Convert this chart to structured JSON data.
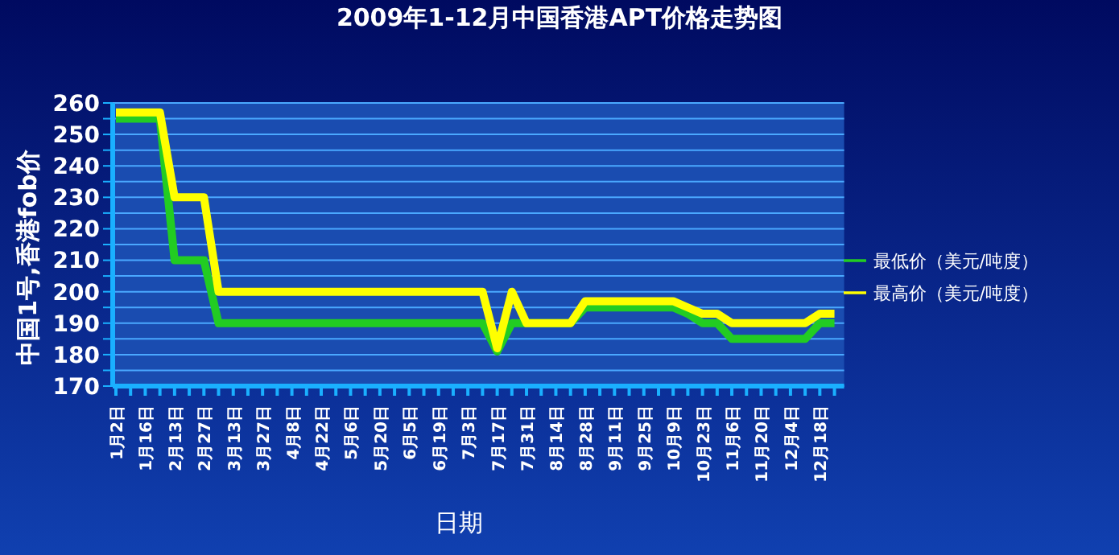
{
  "chart_data": {
    "type": "line",
    "title": "2009年1-12月中国香港APT价格走势图",
    "xlabel": "日期",
    "ylabel": "中国1号,香港fob价",
    "categories": [
      "1月2日",
      null,
      "1月16日",
      null,
      "2月13日",
      null,
      "2月27日",
      null,
      "3月13日",
      null,
      "3月27日",
      null,
      "4月8日",
      null,
      "4月22日",
      null,
      "5月6日",
      null,
      "5月20日",
      null,
      "6月5日",
      null,
      "6月19日",
      null,
      "7月3日",
      null,
      "7月17日",
      null,
      "7月31日",
      null,
      "8月14日",
      null,
      "8月28日",
      null,
      "9月11日",
      null,
      "9月25日",
      null,
      "10月9日",
      null,
      "10月23日",
      null,
      "11月6日",
      null,
      "11月20日",
      null,
      "12月4日",
      null,
      "12月18日",
      null
    ],
    "series": [
      {
        "name": "最低价（美元/吨度）",
        "color": "#22cc22",
        "values": [
          255,
          255,
          255,
          255,
          210,
          210,
          210,
          190,
          190,
          190,
          190,
          190,
          190,
          190,
          190,
          190,
          190,
          190,
          190,
          190,
          190,
          190,
          190,
          190,
          190,
          190,
          181,
          190,
          190,
          190,
          190,
          190,
          195,
          195,
          195,
          195,
          195,
          195,
          195,
          193,
          190,
          190,
          185,
          185,
          185,
          185,
          185,
          185,
          190,
          190
        ]
      },
      {
        "name": "最高价（美元/吨度）",
        "color": "#ffff00",
        "values": [
          257,
          257,
          257,
          257,
          230,
          230,
          230,
          200,
          200,
          200,
          200,
          200,
          200,
          200,
          200,
          200,
          200,
          200,
          200,
          200,
          200,
          200,
          200,
          200,
          200,
          200,
          182,
          200,
          190,
          190,
          190,
          190,
          197,
          197,
          197,
          197,
          197,
          197,
          197,
          195,
          193,
          193,
          190,
          190,
          190,
          190,
          190,
          190,
          193,
          193
        ]
      }
    ],
    "ylim": [
      170,
      260
    ],
    "yticks": [
      170,
      {
        "value": 175,
        "label": null
      },
      180,
      {
        "value": 185,
        "label": null
      },
      190,
      {
        "value": 195,
        "label": null
      },
      200,
      {
        "value": 205,
        "label": null
      },
      210,
      {
        "value": 215,
        "label": null
      },
      220,
      {
        "value": 225,
        "label": null
      },
      230,
      {
        "value": 235,
        "label": null
      },
      240,
      {
        "value": 245,
        "label": null
      },
      250,
      {
        "value": 255,
        "label": null
      },
      260
    ],
    "grid": "y",
    "legend": "right"
  }
}
